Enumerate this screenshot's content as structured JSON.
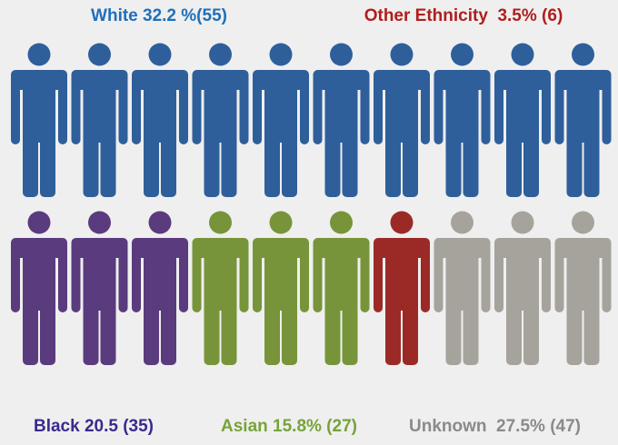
{
  "chart_data": {
    "type": "pictogram",
    "groups": [
      {
        "label": "White 32.2 %(55)",
        "color": "#2e5f9b",
        "label_color": "#1f6fba",
        "icons": 10
      },
      {
        "label": "Black 20.5 (35)",
        "color": "#5a3b7d",
        "label_color": "#3a2a8c",
        "icons": 3
      },
      {
        "label": "Asian 15.8% (27)",
        "color": "#77943a",
        "label_color": "#77a33a",
        "icons": 3
      },
      {
        "label": "Other Ethnicity  3.5% (6)",
        "color": "#9b2a26",
        "label_color": "#b01e1e",
        "icons": 1
      },
      {
        "label": "Unknown  27.5% (47)",
        "color": "#a6a39c",
        "label_color": "#8a8a8a",
        "icons": 3
      }
    ]
  }
}
